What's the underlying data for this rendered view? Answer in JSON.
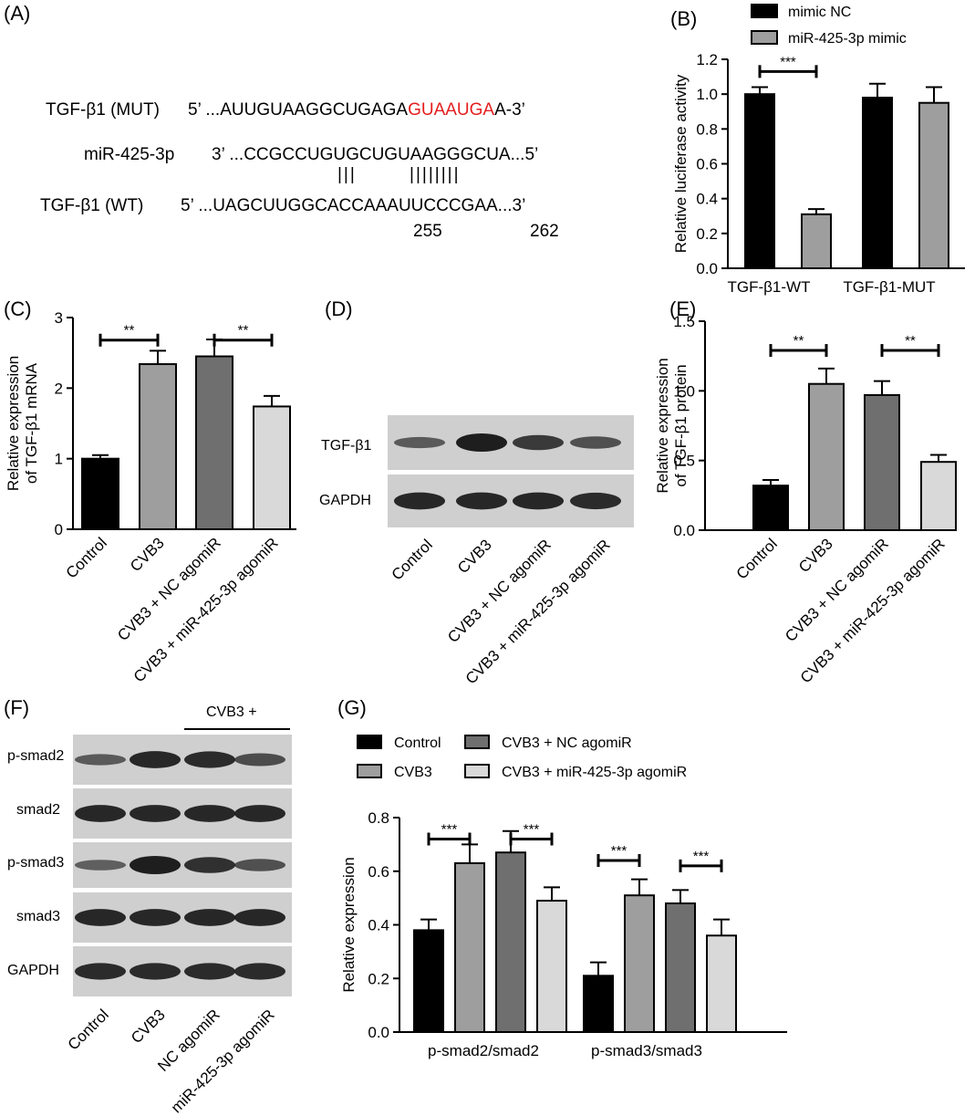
{
  "panels": {
    "A": {
      "label": "(A)",
      "mut_name": "TGF-β1 (MUT)",
      "mut_prefix": "5’ ...AUUGUAAGGCUGAGA",
      "mut_site": "GUAAUGA",
      "mut_suffix": "A-3’",
      "mir_name": "miR-425-3p",
      "mir_seq": "3’ ...CCGCCUGUGCUGUAAGGGCUA...5’",
      "pair_marks": "|||        ||||||||",
      "wt_name": "TGF-β1 (WT)",
      "wt_seq": "5’ ...UAGCUUGGCACCAAAUUCCCGAA...3’",
      "pos_start": "255",
      "pos_end": "262"
    },
    "B": {
      "label": "(B)"
    },
    "C": {
      "label": "(C)"
    },
    "D": {
      "label": "(D)",
      "bands": [
        "TGF-β1",
        "GAPDH"
      ],
      "lanes": [
        "Control",
        "CVB3",
        "CVB3 + NC agomiR",
        "CVB3 + miR-425-3p agomiR"
      ]
    },
    "E": {
      "label": "(E)"
    },
    "F": {
      "label": "(F)",
      "group_label": "CVB3 +",
      "bands": [
        "p-smad2",
        "smad2",
        "p-smad3",
        "smad3",
        "GAPDH"
      ],
      "lanes": [
        "Control",
        "CVB3",
        "NC agomiR",
        "miR-425-3p agomiR"
      ]
    },
    "G": {
      "label": "(G)"
    }
  },
  "colors": {
    "black": "#000000",
    "gray": "#9e9e9e",
    "darkgray": "#6f6f6f",
    "lightgray": "#d9d9d9",
    "red": "#e41e1e"
  },
  "chart_data": [
    {
      "id": "B",
      "type": "bar",
      "categories": [
        "TGF-β1-WT",
        "TGF-β1-MUT"
      ],
      "series": [
        {
          "name": "mimic NC",
          "values": [
            1.0,
            0.98
          ],
          "errors": [
            0.04,
            0.08
          ],
          "color": "#000000"
        },
        {
          "name": "miR-425-3p mimic",
          "values": [
            0.31,
            0.95
          ],
          "errors": [
            0.03,
            0.09
          ],
          "color": "#9e9e9e"
        }
      ],
      "ylabel": "Relative luciferase activity",
      "ylim": [
        0,
        1.2
      ],
      "yticks": [
        "0.0",
        "0.2",
        "0.4",
        "0.6",
        "0.8",
        "1.0",
        "1.2"
      ],
      "significance": [
        "***"
      ],
      "legend": "top"
    },
    {
      "id": "C",
      "type": "bar",
      "categories": [
        "Control",
        "CVB3",
        "CVB3 + NC agomiR",
        "CVB3 + miR-425-3p agomiR"
      ],
      "values": [
        1.0,
        2.34,
        2.45,
        1.74
      ],
      "errors": [
        0.05,
        0.19,
        0.24,
        0.15
      ],
      "colors": [
        "#000000",
        "#9e9e9e",
        "#6f6f6f",
        "#d9d9d9"
      ],
      "ylabel": "Relative expression of TGF-β1 mRNA",
      "ylim": [
        0,
        3
      ],
      "yticks": [
        "0",
        "1",
        "2",
        "3"
      ],
      "significance": [
        "**",
        "**"
      ]
    },
    {
      "id": "E",
      "type": "bar",
      "categories": [
        "Control",
        "CVB3",
        "CVB3 + NC agomiR",
        "CVB3 + miR-425-3p agomiR"
      ],
      "values": [
        0.32,
        1.05,
        0.97,
        0.49
      ],
      "errors": [
        0.04,
        0.11,
        0.1,
        0.05
      ],
      "colors": [
        "#000000",
        "#9e9e9e",
        "#6f6f6f",
        "#d9d9d9"
      ],
      "ylabel": "Relative expression of TGF-β1 protein",
      "ylim": [
        0,
        1.5
      ],
      "yticks": [
        "0.0",
        "0.5",
        "1.0",
        "1.5"
      ],
      "significance": [
        "**",
        "**"
      ]
    },
    {
      "id": "G",
      "type": "bar",
      "categories": [
        "p-smad2/smad2",
        "p-smad3/smad3"
      ],
      "series": [
        {
          "name": "Control",
          "values": [
            0.38,
            0.21
          ],
          "errors": [
            0.04,
            0.05
          ],
          "color": "#000000"
        },
        {
          "name": "CVB3",
          "values": [
            0.63,
            0.51
          ],
          "errors": [
            0.07,
            0.06
          ],
          "color": "#9e9e9e"
        },
        {
          "name": "CVB3 + NC agomiR",
          "values": [
            0.67,
            0.48
          ],
          "errors": [
            0.08,
            0.05
          ],
          "color": "#6f6f6f"
        },
        {
          "name": "CVB3 + miR-425-3p agomiR",
          "values": [
            0.49,
            0.36
          ],
          "errors": [
            0.05,
            0.06
          ],
          "color": "#d9d9d9"
        }
      ],
      "ylabel": "Relative expression",
      "ylim": [
        0,
        0.8
      ],
      "yticks": [
        "0.0",
        "0.2",
        "0.4",
        "0.6",
        "0.8"
      ],
      "significance": [
        "***",
        "***",
        "***",
        "***"
      ],
      "legend": "top"
    }
  ]
}
